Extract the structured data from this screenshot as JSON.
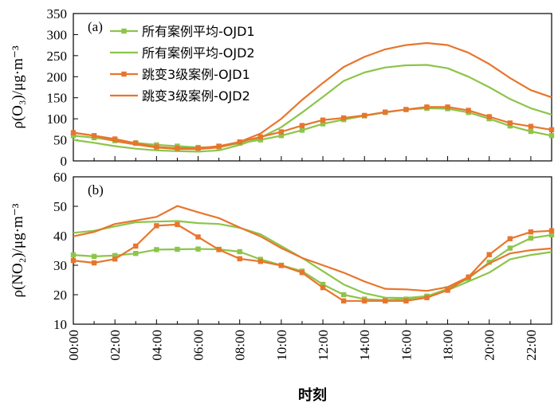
{
  "colors": {
    "green": "#8CC54A",
    "orange": "#E8752D",
    "axis": "#000000"
  },
  "x_title": "时刻",
  "chart_data": [
    {
      "type": "line",
      "panel_label": "(a)",
      "ylabel": "ρ(O₃)/μg·m⁻³",
      "ylim": [
        0,
        350
      ],
      "yticks": [
        "0",
        "50",
        "100",
        "150",
        "200",
        "250",
        "300",
        "350"
      ],
      "xlim": [
        0,
        23
      ],
      "xticks": [
        "00:00",
        "02:00",
        "04:00",
        "06:00",
        "08:00",
        "10:00",
        "12:00",
        "14:00",
        "16:00",
        "18:00",
        "20:00",
        "22:00"
      ],
      "x": [
        0,
        1,
        2,
        3,
        4,
        5,
        6,
        7,
        8,
        9,
        10,
        11,
        12,
        13,
        14,
        15,
        16,
        17,
        18,
        19,
        20,
        21,
        22,
        23
      ],
      "series": [
        {
          "name": "所有案例平均-OJD1",
          "color": "green",
          "marker": "square",
          "values": [
            60,
            55,
            48,
            43,
            38,
            35,
            32,
            33,
            42,
            50,
            60,
            73,
            88,
            98,
            107,
            115,
            122,
            125,
            124,
            115,
            100,
            83,
            70,
            60
          ]
        },
        {
          "name": "所有案例平均-OJD2",
          "color": "green",
          "marker": "none",
          "values": [
            50,
            43,
            35,
            29,
            25,
            23,
            22,
            25,
            38,
            55,
            80,
            115,
            152,
            190,
            210,
            222,
            227,
            228,
            220,
            200,
            175,
            147,
            125,
            110
          ]
        },
        {
          "name": "跳变3级案例-OJD1",
          "color": "orange",
          "marker": "square",
          "values": [
            67,
            60,
            52,
            42,
            33,
            30,
            30,
            35,
            45,
            57,
            69,
            84,
            97,
            102,
            108,
            116,
            122,
            128,
            128,
            120,
            105,
            90,
            82,
            74
          ]
        },
        {
          "name": "跳变3级案例-OJD2",
          "color": "orange",
          "marker": "none",
          "values": [
            67,
            60,
            47,
            39,
            32,
            28,
            28,
            32,
            45,
            65,
            100,
            145,
            185,
            223,
            247,
            265,
            275,
            280,
            275,
            257,
            230,
            197,
            168,
            151
          ]
        }
      ]
    },
    {
      "type": "line",
      "panel_label": "(b)",
      "ylabel": "ρ(NO₂)/μg·m⁻³",
      "ylim": [
        10,
        60
      ],
      "yticks": [
        "10",
        "20",
        "30",
        "40",
        "50",
        "60"
      ],
      "xlim": [
        0,
        23
      ],
      "xticks": [
        "00:00",
        "02:00",
        "04:00",
        "06:00",
        "08:00",
        "10:00",
        "12:00",
        "14:00",
        "16:00",
        "18:00",
        "20:00",
        "22:00"
      ],
      "x": [
        0,
        1,
        2,
        3,
        4,
        5,
        6,
        7,
        8,
        9,
        10,
        11,
        12,
        13,
        14,
        15,
        16,
        17,
        18,
        19,
        20,
        21,
        22,
        23
      ],
      "series": [
        {
          "name": "所有案例平均-OJD1",
          "color": "green",
          "marker": "square",
          "values": [
            33.5,
            33,
            33.3,
            34,
            35.3,
            35.4,
            35.5,
            35.4,
            34.6,
            32,
            30,
            28,
            23.5,
            20,
            18.5,
            18.2,
            18.5,
            19.5,
            22,
            25.5,
            31,
            35.8,
            39.2,
            40.3
          ]
        },
        {
          "name": "所有案例平均-OJD2",
          "color": "green",
          "marker": "none",
          "values": [
            41,
            41.7,
            43.2,
            44.6,
            44.8,
            45,
            44.3,
            44,
            42.7,
            40.5,
            36.5,
            32.5,
            28,
            23.5,
            20.5,
            19,
            18.9,
            19.5,
            21.5,
            24.5,
            27.5,
            32,
            33.5,
            34.5
          ]
        },
        {
          "name": "跳变3级案例-OJD1",
          "color": "orange",
          "marker": "square",
          "values": [
            31.6,
            30.8,
            32.1,
            36.5,
            43.4,
            43.8,
            39.6,
            35.3,
            32.2,
            31.3,
            29.9,
            27.5,
            22.4,
            17.9,
            17.9,
            17.9,
            17.9,
            19,
            21.5,
            26,
            33.6,
            39,
            41.3,
            41.7
          ]
        },
        {
          "name": "跳变3级案例-OJD2",
          "color": "orange",
          "marker": "none",
          "values": [
            39.8,
            41.3,
            44,
            45.2,
            46.4,
            50.1,
            48,
            46,
            42.8,
            39.8,
            35.8,
            32.5,
            30,
            27.5,
            24.5,
            22,
            21.8,
            21.3,
            22.6,
            26,
            30.6,
            34,
            35.1,
            35.7
          ]
        }
      ]
    }
  ]
}
